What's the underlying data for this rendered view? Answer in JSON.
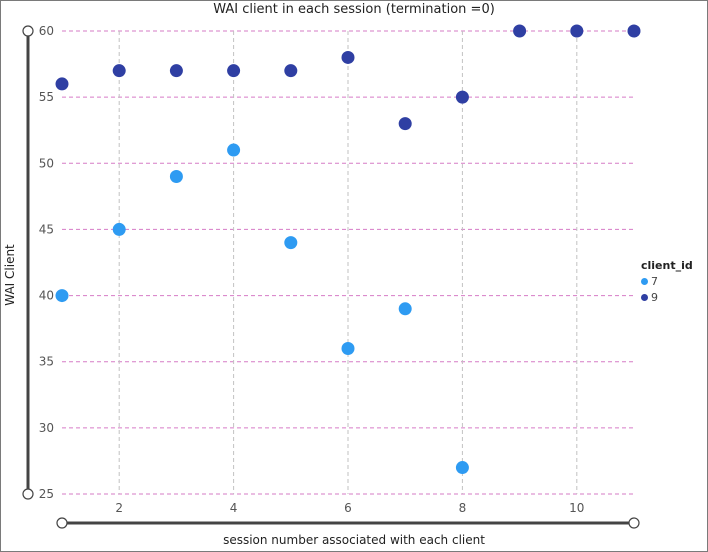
{
  "chart_data": {
    "type": "scatter",
    "title": "WAI client in each session (termination =0)",
    "xlabel": "session number associated with each client",
    "ylabel": "WAI Client",
    "xlim": [
      1,
      11
    ],
    "ylim": [
      25,
      60
    ],
    "xticks": [
      2,
      4,
      6,
      8,
      10
    ],
    "yticks": [
      25,
      30,
      35,
      40,
      45,
      50,
      55,
      60
    ],
    "grid": true,
    "legend_position": "right",
    "legend_title": "client_id",
    "series": [
      {
        "name": "7",
        "color": "#2e9bf2",
        "x": [
          1,
          2,
          3,
          4,
          5,
          6,
          7,
          8
        ],
        "y": [
          40,
          45,
          49,
          51,
          44,
          36,
          39,
          27
        ]
      },
      {
        "name": "9",
        "color": "#2f3fa3",
        "x": [
          1,
          2,
          3,
          4,
          5,
          6,
          7,
          8,
          9,
          10,
          11
        ],
        "y": [
          56,
          57,
          57,
          57,
          57,
          58,
          53,
          55,
          60,
          60,
          60
        ]
      }
    ]
  }
}
